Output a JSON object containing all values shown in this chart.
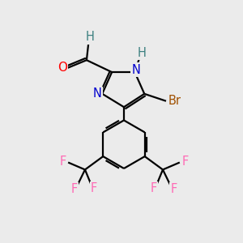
{
  "background_color": "#ebebeb",
  "bond_color": "#000000",
  "atom_colors": {
    "O": "#ff0000",
    "N": "#0000cd",
    "Br": "#a05000",
    "F": "#ff69b4",
    "H_teal": "#3d8080",
    "C": "#000000"
  },
  "lw": 1.6,
  "fs": 10.5
}
